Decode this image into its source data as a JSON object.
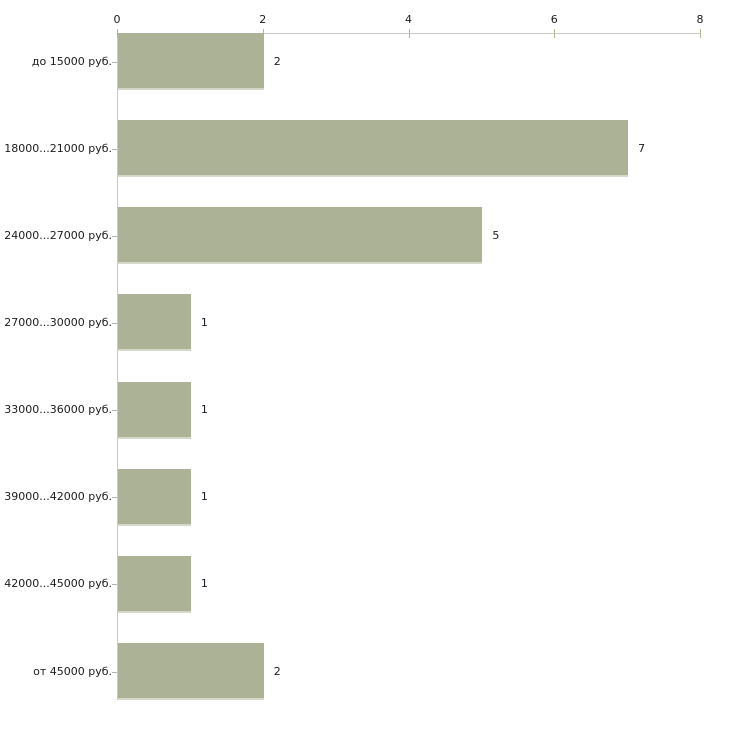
{
  "chart_data": {
    "type": "bar",
    "orientation": "horizontal",
    "title": "",
    "xlabel": "",
    "ylabel": "",
    "categories": [
      "до 15000 руб.",
      "18000...21000 руб.",
      "24000...27000 руб.",
      "27000...30000 руб.",
      "33000...36000 руб.",
      "39000...42000 руб.",
      "42000...45000 руб.",
      "от 45000 руб."
    ],
    "values": [
      2,
      7,
      5,
      1,
      1,
      1,
      1,
      2
    ],
    "value_labels": [
      "2",
      "7",
      "5",
      "1",
      "1",
      "1",
      "1",
      "2"
    ],
    "xlim": [
      0,
      8
    ],
    "x_ticks": [
      0,
      2,
      4,
      6,
      8
    ],
    "x_tick_labels": [
      "0",
      "2",
      "4",
      "6",
      "8"
    ],
    "axis_position": "top",
    "grid": false,
    "legend": null,
    "colors": {
      "background": "#ffffff",
      "bar_fill": "#acb296",
      "bar_bottom_edge": "#d6d8c9",
      "axis_line": "#c9c9c9",
      "x_tick_mark": "#b6b893",
      "y_tick_mark": "#b3b3a6",
      "label_text": "#1c1c1c"
    }
  }
}
